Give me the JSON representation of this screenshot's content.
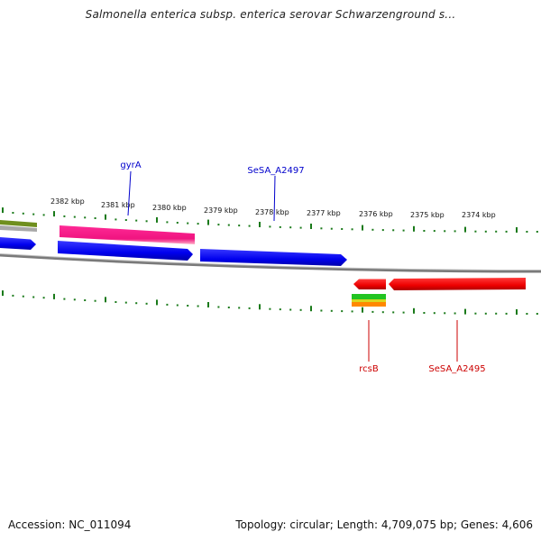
{
  "header": {
    "title": "Salmonella enterica subsp. enterica serovar Schwarzenground s..."
  },
  "footer": {
    "accession": "Accession: NC_011094",
    "summary": "Topology: circular; Length: 4,709,075 bp; Genes: 4,606"
  },
  "scale": {
    "unit": "kbp",
    "labels": [
      "2382 kbp",
      "2381 kbp",
      "2380 kbp",
      "2379 kbp",
      "2378 kbp",
      "2377 kbp",
      "2376 kbp",
      "2375 kbp",
      "2374 kbp"
    ]
  },
  "genes": {
    "forward_labeled": [
      "gyrA",
      "SeSA_A2497"
    ],
    "reverse_labeled": [
      "rcsB",
      "SeSA_A2495"
    ]
  },
  "colors": {
    "forward_label": "#0000cc",
    "reverse_label": "#cc0000",
    "cds_blue": "#0000ff",
    "cds_red": "#ff0000",
    "cds_pink": "#ff2090",
    "tick": "#1a7a1a",
    "backbone": "#808080"
  }
}
